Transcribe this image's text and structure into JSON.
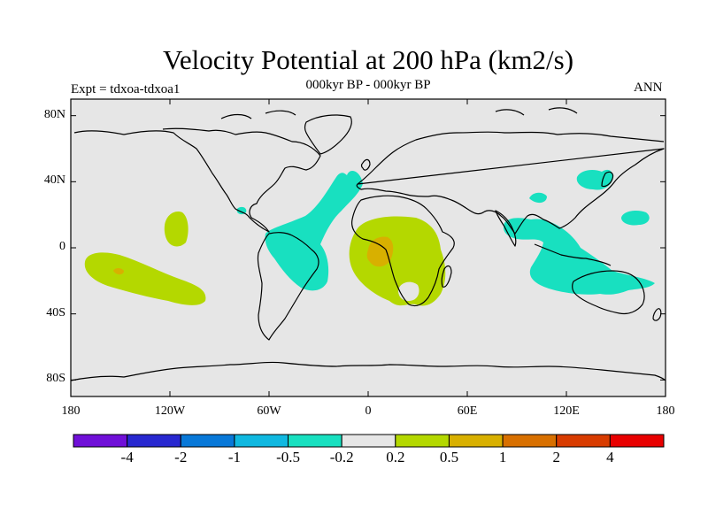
{
  "figure": {
    "title": "Velocity Potential at 200 hPa (km2/s)",
    "subtitle": "000kyr BP - 000kyr BP",
    "left_label": "Expt = tdxoa-tdxoa1",
    "right_label": "ANN"
  },
  "map": {
    "lon_range": [
      -180,
      180
    ],
    "lat_range": [
      -90,
      90
    ],
    "background_color": "#e6e6e6",
    "x_ticks": [
      {
        "lon": -180,
        "label": "180"
      },
      {
        "lon": -120,
        "label": "120W"
      },
      {
        "lon": -60,
        "label": "60W"
      },
      {
        "lon": 0,
        "label": "0"
      },
      {
        "lon": 60,
        "label": "60E"
      },
      {
        "lon": 120,
        "label": "120E"
      },
      {
        "lon": 180,
        "label": "180"
      }
    ],
    "y_ticks": [
      {
        "lat": 80,
        "label": "80N"
      },
      {
        "lat": 40,
        "label": "40N"
      },
      {
        "lat": 0,
        "label": "0"
      },
      {
        "lat": -40,
        "label": "40S"
      },
      {
        "lat": -80,
        "label": "80S"
      }
    ]
  },
  "colorbar": {
    "colors": [
      "#7010d8",
      "#2828d0",
      "#0878d8",
      "#10b8e0",
      "#18e0c0",
      "#e6e6e6",
      "#b4d800",
      "#d8b000",
      "#d87000",
      "#d83c00",
      "#e80000"
    ],
    "labels": [
      "-4",
      "-2",
      "-1",
      "-0.5",
      "-0.2",
      "0.2",
      "0.5",
      "1",
      "2",
      "4"
    ]
  }
}
